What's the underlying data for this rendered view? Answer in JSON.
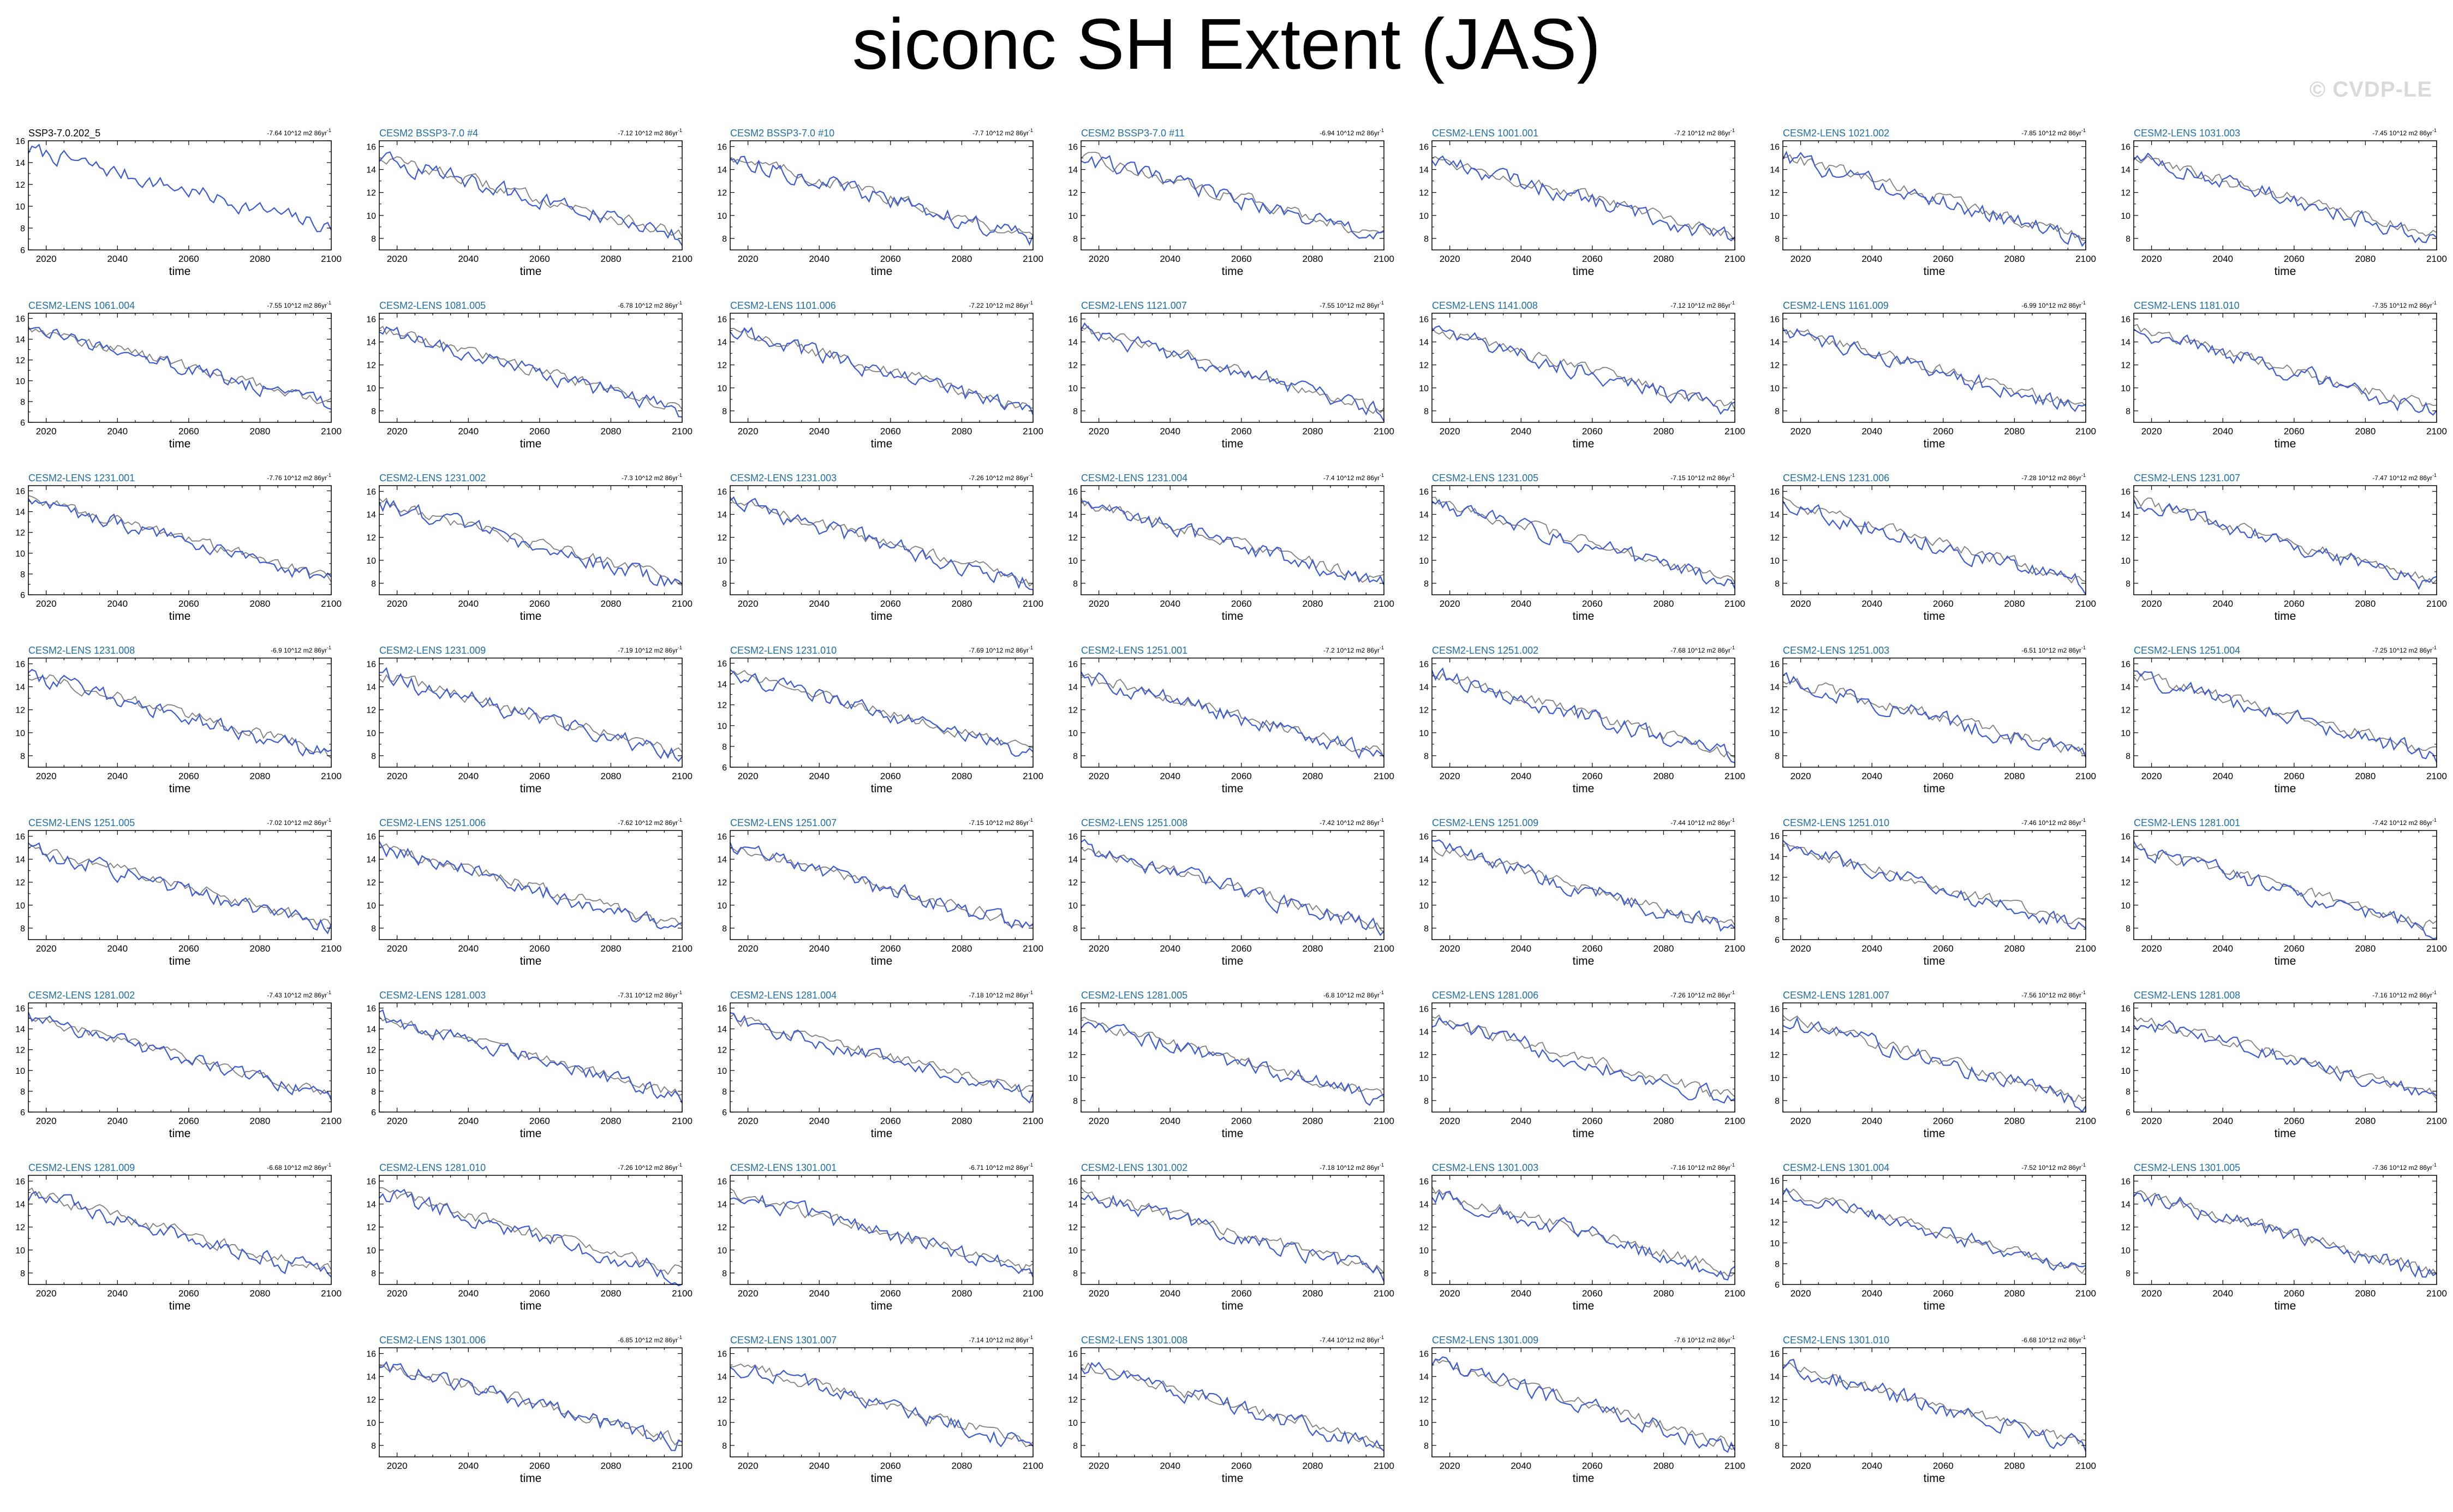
{
  "title": "siconc SH Extent (JAS)",
  "watermark": "© CVDP-LE",
  "chart_data": {
    "type": "line",
    "title": "siconc SH Extent (JAS)",
    "xlabel": "time",
    "xlim": [
      2015,
      2100
    ],
    "x_ticks": [
      2020,
      2040,
      2060,
      2080,
      2100
    ],
    "trend_unit": "10^12 m2 86yr",
    "series_colors": {
      "observation": "#808080",
      "model": "#3b5bd6"
    },
    "grid": false,
    "panels": [
      {
        "label": "SSP3-7.0.202_5",
        "label_color": "#000000",
        "trend": "-7.64",
        "ylim": [
          6,
          16
        ],
        "yticks": [
          6,
          8,
          10,
          12,
          14,
          16
        ],
        "start": 15.2,
        "end": 8.0,
        "show_reference": false
      },
      {
        "label": "CESM2 BSSP3-7.0 #4",
        "trend": "-7.12",
        "ylim": [
          7,
          16.5
        ],
        "yticks": [
          8,
          10,
          12,
          14,
          16
        ],
        "start": 15.0,
        "end": 8.0
      },
      {
        "label": "CESM2 BSSP3-7.0 #10",
        "trend": "-7.7",
        "ylim": [
          7,
          16.5
        ],
        "yticks": [
          8,
          10,
          12,
          14,
          16
        ],
        "start": 15.1,
        "end": 7.9
      },
      {
        "label": "CESM2 BSSP3-7.0 #11",
        "trend": "-6.94",
        "ylim": [
          7,
          16.5
        ],
        "yticks": [
          8,
          10,
          12,
          14,
          16
        ],
        "start": 15.0,
        "end": 8.0
      },
      {
        "label": "CESM2-LENS 1001.001",
        "trend": "-7.2",
        "ylim": [
          7,
          16.5
        ],
        "yticks": [
          8,
          10,
          12,
          14,
          16
        ],
        "start": 15.0,
        "end": 7.9
      },
      {
        "label": "CESM2-LENS 1021.002",
        "trend": "-7.85",
        "ylim": [
          7,
          16.5
        ],
        "yticks": [
          8,
          10,
          12,
          14,
          16
        ],
        "start": 15.1,
        "end": 7.8
      },
      {
        "label": "CESM2-LENS 1031.003",
        "trend": "-7.45",
        "ylim": [
          7,
          16.5
        ],
        "yticks": [
          8,
          10,
          12,
          14,
          16
        ],
        "start": 15.0,
        "end": 7.9
      },
      {
        "label": "CESM2-LENS 1061.004",
        "trend": "-7.55",
        "ylim": [
          6,
          16.5
        ],
        "yticks": [
          6,
          8,
          10,
          12,
          14,
          16
        ],
        "start": 15.1,
        "end": 7.5
      },
      {
        "label": "CESM2-LENS 1081.005",
        "trend": "-6.78",
        "ylim": [
          7,
          16.5
        ],
        "yticks": [
          8,
          10,
          12,
          14,
          16
        ],
        "start": 15.0,
        "end": 8.0
      },
      {
        "label": "CESM2-LENS 1101.006",
        "trend": "-7.22",
        "ylim": [
          7,
          16.5
        ],
        "yticks": [
          8,
          10,
          12,
          14,
          16
        ],
        "start": 15.0,
        "end": 7.9
      },
      {
        "label": "CESM2-LENS 1121.007",
        "trend": "-7.55",
        "ylim": [
          7,
          16.5
        ],
        "yticks": [
          8,
          10,
          12,
          14,
          16
        ],
        "start": 15.1,
        "end": 7.8
      },
      {
        "label": "CESM2-LENS 1141.008",
        "trend": "-7.12",
        "ylim": [
          7,
          16.5
        ],
        "yticks": [
          8,
          10,
          12,
          14,
          16
        ],
        "start": 15.0,
        "end": 7.9
      },
      {
        "label": "CESM2-LENS 1161.009",
        "trend": "-6.99",
        "ylim": [
          7,
          16.5
        ],
        "yticks": [
          8,
          10,
          12,
          14,
          16
        ],
        "start": 15.0,
        "end": 8.0
      },
      {
        "label": "CESM2-LENS 1181.010",
        "trend": "-7.35",
        "ylim": [
          7,
          16.5
        ],
        "yticks": [
          8,
          10,
          12,
          14,
          16
        ],
        "start": 15.1,
        "end": 7.9
      },
      {
        "label": "CESM2-LENS 1231.001",
        "trend": "-7.76",
        "ylim": [
          6,
          16.5
        ],
        "yticks": [
          6,
          8,
          10,
          12,
          14,
          16
        ],
        "start": 15.2,
        "end": 7.3
      },
      {
        "label": "CESM2-LENS 1231.002",
        "trend": "-7.3",
        "ylim": [
          7,
          16.5
        ],
        "yticks": [
          8,
          10,
          12,
          14,
          16
        ],
        "start": 15.0,
        "end": 7.8
      },
      {
        "label": "CESM2-LENS 1231.003",
        "trend": "-7.26",
        "ylim": [
          7,
          16.5
        ],
        "yticks": [
          8,
          10,
          12,
          14,
          16
        ],
        "start": 15.1,
        "end": 7.8
      },
      {
        "label": "CESM2-LENS 1231.004",
        "trend": "-7.4",
        "ylim": [
          7,
          16.5
        ],
        "yticks": [
          8,
          10,
          12,
          14,
          16
        ],
        "start": 15.0,
        "end": 7.9
      },
      {
        "label": "CESM2-LENS 1231.005",
        "trend": "-7.15",
        "ylim": [
          7,
          16.5
        ],
        "yticks": [
          8,
          10,
          12,
          14,
          16
        ],
        "start": 15.0,
        "end": 7.9
      },
      {
        "label": "CESM2-LENS 1231.006",
        "trend": "-7.28",
        "ylim": [
          7,
          16.5
        ],
        "yticks": [
          8,
          10,
          12,
          14,
          16
        ],
        "start": 15.0,
        "end": 7.8
      },
      {
        "label": "CESM2-LENS 1231.007",
        "trend": "-7.47",
        "ylim": [
          7,
          16.5
        ],
        "yticks": [
          8,
          10,
          12,
          14,
          16
        ],
        "start": 15.1,
        "end": 7.8
      },
      {
        "label": "CESM2-LENS 1231.008",
        "trend": "-6.9",
        "ylim": [
          7,
          16.5
        ],
        "yticks": [
          8,
          10,
          12,
          14,
          16
        ],
        "start": 15.0,
        "end": 8.0
      },
      {
        "label": "CESM2-LENS 1231.009",
        "trend": "-7.19",
        "ylim": [
          7,
          16.5
        ],
        "yticks": [
          8,
          10,
          12,
          14,
          16
        ],
        "start": 15.0,
        "end": 7.9
      },
      {
        "label": "CESM2-LENS 1231.010",
        "trend": "-7.69",
        "ylim": [
          6,
          16.5
        ],
        "yticks": [
          6,
          8,
          10,
          12,
          14,
          16
        ],
        "start": 15.1,
        "end": 7.2
      },
      {
        "label": "CESM2-LENS 1251.001",
        "trend": "-7.2",
        "ylim": [
          7,
          16.5
        ],
        "yticks": [
          8,
          10,
          12,
          14,
          16
        ],
        "start": 15.0,
        "end": 7.9
      },
      {
        "label": "CESM2-LENS 1251.002",
        "trend": "-7.68",
        "ylim": [
          7,
          16.5
        ],
        "yticks": [
          8,
          10,
          12,
          14,
          16
        ],
        "start": 15.1,
        "end": 7.8
      },
      {
        "label": "CESM2-LENS 1251.003",
        "trend": "-6.51",
        "ylim": [
          7,
          16.5
        ],
        "yticks": [
          8,
          10,
          12,
          14,
          16
        ],
        "start": 14.6,
        "end": 8.0
      },
      {
        "label": "CESM2-LENS 1251.004",
        "trend": "-7.25",
        "ylim": [
          7,
          16.5
        ],
        "yticks": [
          8,
          10,
          12,
          14,
          16
        ],
        "start": 15.0,
        "end": 7.9
      },
      {
        "label": "CESM2-LENS 1251.005",
        "trend": "-7.02",
        "ylim": [
          7,
          16.5
        ],
        "yticks": [
          8,
          10,
          12,
          14,
          16
        ],
        "start": 15.0,
        "end": 8.0
      },
      {
        "label": "CESM2-LENS 1251.006",
        "trend": "-7.62",
        "ylim": [
          7,
          16.5
        ],
        "yticks": [
          8,
          10,
          12,
          14,
          16
        ],
        "start": 15.1,
        "end": 7.8
      },
      {
        "label": "CESM2-LENS 1251.007",
        "trend": "-7.15",
        "ylim": [
          7,
          16.5
        ],
        "yticks": [
          8,
          10,
          12,
          14,
          16
        ],
        "start": 15.0,
        "end": 7.9
      },
      {
        "label": "CESM2-LENS 1251.008",
        "trend": "-7.42",
        "ylim": [
          7,
          16.5
        ],
        "yticks": [
          8,
          10,
          12,
          14,
          16
        ],
        "start": 15.0,
        "end": 7.8
      },
      {
        "label": "CESM2-LENS 1251.009",
        "trend": "-7.44",
        "ylim": [
          7,
          16.5
        ],
        "yticks": [
          8,
          10,
          12,
          14,
          16
        ],
        "start": 15.1,
        "end": 7.8
      },
      {
        "label": "CESM2-LENS 1251.010",
        "trend": "-7.46",
        "ylim": [
          6,
          16.5
        ],
        "yticks": [
          6,
          8,
          10,
          12,
          14,
          16
        ],
        "start": 15.0,
        "end": 7.2
      },
      {
        "label": "CESM2-LENS 1281.001",
        "trend": "-7.42",
        "ylim": [
          7,
          16.5
        ],
        "yticks": [
          8,
          10,
          12,
          14,
          16
        ],
        "start": 15.0,
        "end": 7.8
      },
      {
        "label": "CESM2-LENS 1281.002",
        "trend": "-7.43",
        "ylim": [
          6,
          16.5
        ],
        "yticks": [
          6,
          8,
          10,
          12,
          14,
          16
        ],
        "start": 15.0,
        "end": 7.4
      },
      {
        "label": "CESM2-LENS 1281.003",
        "trend": "-7.31",
        "ylim": [
          6,
          16.5
        ],
        "yticks": [
          6,
          8,
          10,
          12,
          14,
          16
        ],
        "start": 15.0,
        "end": 7.4
      },
      {
        "label": "CESM2-LENS 1281.004",
        "trend": "-7.18",
        "ylim": [
          6,
          16.5
        ],
        "yticks": [
          6,
          8,
          10,
          12,
          14,
          16
        ],
        "start": 14.9,
        "end": 7.6
      },
      {
        "label": "CESM2-LENS 1281.005",
        "trend": "-6.8",
        "ylim": [
          7,
          16.5
        ],
        "yticks": [
          8,
          10,
          12,
          14,
          16
        ],
        "start": 14.9,
        "end": 8.0
      },
      {
        "label": "CESM2-LENS 1281.006",
        "trend": "-7.26",
        "ylim": [
          7,
          16.5
        ],
        "yticks": [
          8,
          10,
          12,
          14,
          16
        ],
        "start": 15.0,
        "end": 7.9
      },
      {
        "label": "CESM2-LENS 1281.007",
        "trend": "-7.56",
        "ylim": [
          7,
          16.5
        ],
        "yticks": [
          8,
          10,
          12,
          14,
          16
        ],
        "start": 15.1,
        "end": 7.8
      },
      {
        "label": "CESM2-LENS 1281.008",
        "trend": "-7.16",
        "ylim": [
          6,
          16.5
        ],
        "yticks": [
          6,
          8,
          10,
          12,
          14,
          16
        ],
        "start": 14.9,
        "end": 7.4
      },
      {
        "label": "CESM2-LENS 1281.009",
        "trend": "-6.68",
        "ylim": [
          7,
          16.5
        ],
        "yticks": [
          8,
          10,
          12,
          14,
          16
        ],
        "start": 14.8,
        "end": 7.8
      },
      {
        "label": "CESM2-LENS 1281.010",
        "trend": "-7.26",
        "ylim": [
          7,
          16.5
        ],
        "yticks": [
          8,
          10,
          12,
          14,
          16
        ],
        "start": 15.0,
        "end": 7.8
      },
      {
        "label": "CESM2-LENS 1301.001",
        "trend": "-6.71",
        "ylim": [
          7,
          16.5
        ],
        "yticks": [
          8,
          10,
          12,
          14,
          16
        ],
        "start": 14.9,
        "end": 8.0
      },
      {
        "label": "CESM2-LENS 1301.002",
        "trend": "-7.18",
        "ylim": [
          7,
          16.5
        ],
        "yticks": [
          8,
          10,
          12,
          14,
          16
        ],
        "start": 15.0,
        "end": 7.9
      },
      {
        "label": "CESM2-LENS 1301.003",
        "trend": "-7.16",
        "ylim": [
          7,
          16.5
        ],
        "yticks": [
          8,
          10,
          12,
          14,
          16
        ],
        "start": 15.0,
        "end": 7.9
      },
      {
        "label": "CESM2-LENS 1301.004",
        "trend": "-7.52",
        "ylim": [
          6,
          16.5
        ],
        "yticks": [
          6,
          8,
          10,
          12,
          14,
          16
        ],
        "start": 15.0,
        "end": 7.3
      },
      {
        "label": "CESM2-LENS 1301.005",
        "trend": "-7.36",
        "ylim": [
          7,
          16.5
        ],
        "yticks": [
          8,
          10,
          12,
          14,
          16
        ],
        "start": 15.0,
        "end": 7.8
      },
      {
        "label": "CESM2-LENS 1301.006",
        "trend": "-6.85",
        "ylim": [
          7,
          16.5
        ],
        "yticks": [
          8,
          10,
          12,
          14,
          16
        ],
        "start": 15.1,
        "end": 8.1
      },
      {
        "label": "CESM2-LENS 1301.007",
        "trend": "-7.14",
        "ylim": [
          7,
          16.5
        ],
        "yticks": [
          8,
          10,
          12,
          14,
          16
        ],
        "start": 15.1,
        "end": 7.9
      },
      {
        "label": "CESM2-LENS 1301.008",
        "trend": "-7.44",
        "ylim": [
          7,
          16.5
        ],
        "yticks": [
          8,
          10,
          12,
          14,
          16
        ],
        "start": 15.0,
        "end": 7.8
      },
      {
        "label": "CESM2-LENS 1301.009",
        "trend": "-7.6",
        "ylim": [
          7,
          16.5
        ],
        "yticks": [
          8,
          10,
          12,
          14,
          16
        ],
        "start": 15.2,
        "end": 7.8
      },
      {
        "label": "CESM2-LENS 1301.010",
        "trend": "-6.68",
        "ylim": [
          7,
          16.5
        ],
        "yticks": [
          8,
          10,
          12,
          14,
          16
        ],
        "start": 14.9,
        "end": 7.9
      }
    ]
  }
}
